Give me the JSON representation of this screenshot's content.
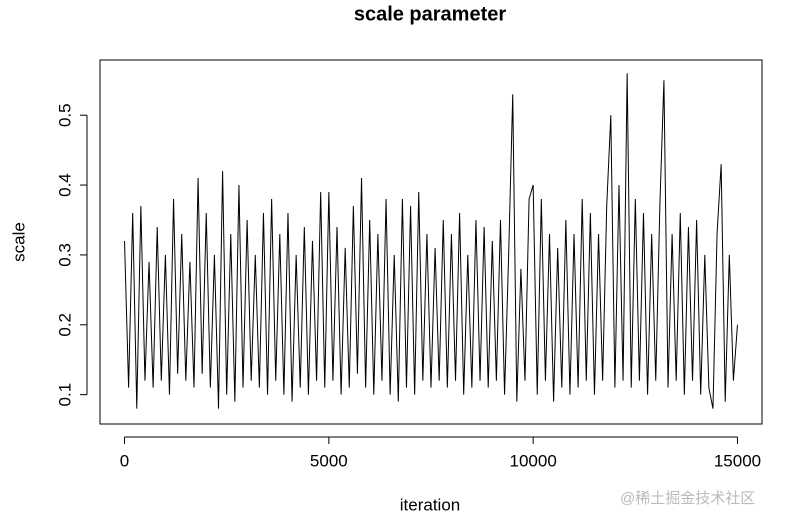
{
  "chart_data": {
    "type": "line",
    "title": "scale parameter",
    "x_label": "iteration",
    "y_label": "scale",
    "color": "#000000",
    "xlim": [
      -600,
      15600
    ],
    "ylim": [
      0.058,
      0.579
    ],
    "xticks": [
      0,
      5000,
      10000,
      15000
    ],
    "yticks": [
      0.1,
      0.2,
      0.3,
      0.4,
      0.5
    ],
    "x": [
      0,
      100,
      200,
      300,
      400,
      500,
      600,
      700,
      800,
      900,
      1000,
      1100,
      1200,
      1300,
      1400,
      1500,
      1600,
      1700,
      1800,
      1900,
      2000,
      2100,
      2200,
      2300,
      2400,
      2500,
      2600,
      2700,
      2800,
      2900,
      3000,
      3100,
      3200,
      3300,
      3400,
      3500,
      3600,
      3700,
      3800,
      3900,
      4000,
      4100,
      4200,
      4300,
      4400,
      4500,
      4600,
      4700,
      4800,
      4900,
      5000,
      5100,
      5200,
      5300,
      5400,
      5500,
      5600,
      5700,
      5800,
      5900,
      6000,
      6100,
      6200,
      6300,
      6400,
      6500,
      6600,
      6700,
      6800,
      6900,
      7000,
      7100,
      7200,
      7300,
      7400,
      7500,
      7600,
      7700,
      7800,
      7900,
      8000,
      8100,
      8200,
      8300,
      8400,
      8500,
      8600,
      8700,
      8800,
      8900,
      9000,
      9100,
      9200,
      9300,
      9400,
      9500,
      9600,
      9700,
      9800,
      9900,
      10000,
      10100,
      10200,
      10300,
      10400,
      10500,
      10600,
      10700,
      10800,
      10900,
      11000,
      11100,
      11200,
      11300,
      11400,
      11500,
      11600,
      11700,
      11800,
      11900,
      12000,
      12100,
      12200,
      12300,
      12400,
      12500,
      12600,
      12700,
      12800,
      12900,
      13000,
      13100,
      13200,
      13300,
      13400,
      13500,
      13600,
      13700,
      13800,
      13900,
      14000,
      14100,
      14200,
      14300,
      14400,
      14500,
      14600,
      14700,
      14800,
      14900,
      15000
    ],
    "values": [
      0.32,
      0.11,
      0.36,
      0.08,
      0.37,
      0.12,
      0.29,
      0.11,
      0.34,
      0.12,
      0.3,
      0.1,
      0.38,
      0.13,
      0.33,
      0.12,
      0.29,
      0.11,
      0.41,
      0.13,
      0.36,
      0.11,
      0.3,
      0.08,
      0.42,
      0.1,
      0.33,
      0.09,
      0.4,
      0.11,
      0.35,
      0.12,
      0.3,
      0.11,
      0.36,
      0.1,
      0.38,
      0.12,
      0.33,
      0.1,
      0.36,
      0.09,
      0.3,
      0.11,
      0.34,
      0.1,
      0.32,
      0.12,
      0.39,
      0.11,
      0.39,
      0.12,
      0.34,
      0.1,
      0.31,
      0.11,
      0.37,
      0.13,
      0.41,
      0.11,
      0.35,
      0.1,
      0.33,
      0.12,
      0.38,
      0.1,
      0.3,
      0.09,
      0.38,
      0.11,
      0.37,
      0.1,
      0.39,
      0.12,
      0.33,
      0.11,
      0.31,
      0.12,
      0.35,
      0.11,
      0.33,
      0.12,
      0.36,
      0.1,
      0.3,
      0.11,
      0.35,
      0.12,
      0.34,
      0.11,
      0.32,
      0.12,
      0.35,
      0.1,
      0.3,
      0.53,
      0.09,
      0.28,
      0.12,
      0.38,
      0.4,
      0.1,
      0.38,
      0.12,
      0.33,
      0.09,
      0.31,
      0.11,
      0.35,
      0.1,
      0.33,
      0.11,
      0.38,
      0.12,
      0.36,
      0.1,
      0.33,
      0.12,
      0.37,
      0.5,
      0.11,
      0.4,
      0.12,
      0.56,
      0.11,
      0.38,
      0.12,
      0.36,
      0.1,
      0.33,
      0.12,
      0.37,
      0.55,
      0.11,
      0.33,
      0.12,
      0.36,
      0.1,
      0.34,
      0.12,
      0.35,
      0.1,
      0.3,
      0.11,
      0.08,
      0.33,
      0.43,
      0.09,
      0.3,
      0.12,
      0.2
    ]
  },
  "watermark": "@稀土掘金技术社区"
}
